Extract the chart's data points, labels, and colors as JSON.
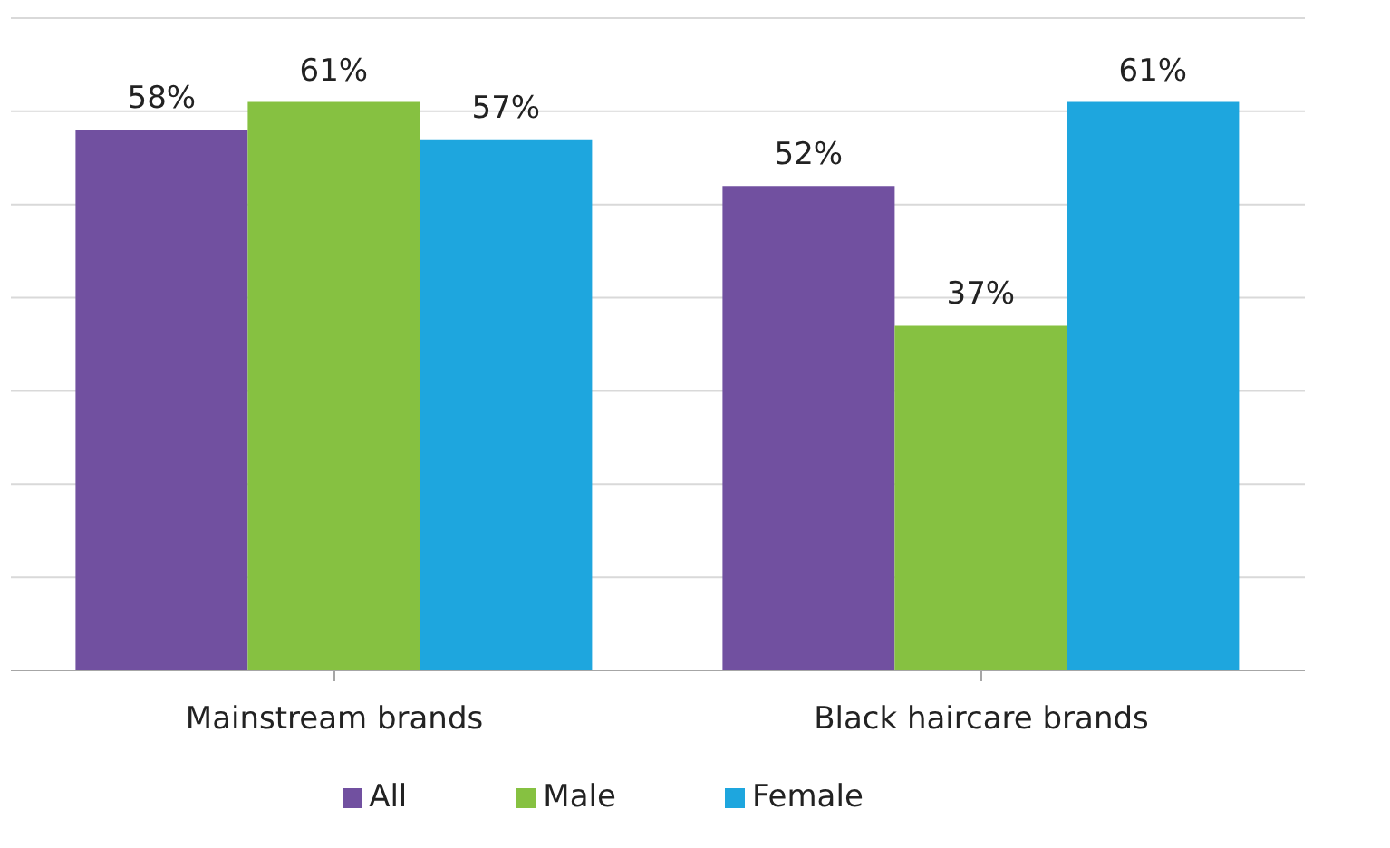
{
  "chart_data": {
    "type": "bar",
    "categories": [
      "Mainstream brands",
      "Black haircare brands"
    ],
    "series": [
      {
        "name": "All",
        "color": "#7150a0",
        "values": [
          58,
          52
        ],
        "value_labels": [
          "58%",
          "52%"
        ]
      },
      {
        "name": "Male",
        "color": "#86c141",
        "values": [
          61,
          37
        ],
        "value_labels": [
          "61%",
          "37%"
        ]
      },
      {
        "name": "Female",
        "color": "#1ea6de",
        "values": [
          57,
          61
        ],
        "value_labels": [
          "57%",
          "61%"
        ]
      }
    ],
    "ylim": [
      0,
      70
    ],
    "tick_labels": "x",
    "grid": "y",
    "legend": "bottom"
  }
}
